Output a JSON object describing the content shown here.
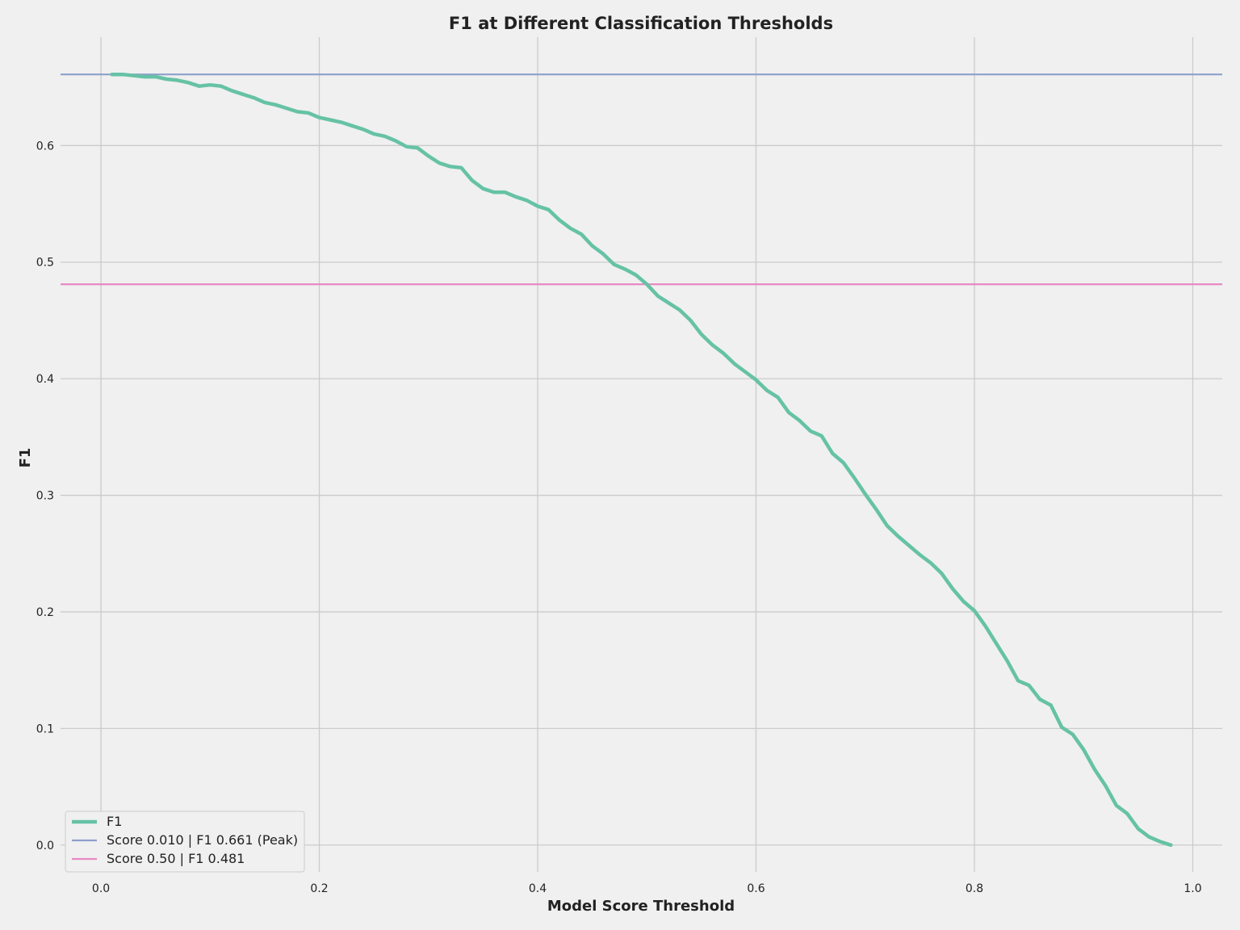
{
  "chart_data": {
    "type": "line",
    "title": "F1 at Different Classification Thresholds",
    "xlabel": "Model Score Threshold",
    "ylabel": "F1",
    "xlim": [
      -0.037,
      1.027
    ],
    "ylim": [
      -0.023,
      0.693
    ],
    "grid": true,
    "legend_position": "bottom-left",
    "x_ticks": [
      0.0,
      0.2,
      0.4,
      0.6,
      0.8,
      1.0
    ],
    "x_tick_labels": [
      "0.0",
      "0.2",
      "0.4",
      "0.6",
      "0.8",
      "1.0"
    ],
    "y_ticks": [
      0.0,
      0.1,
      0.2,
      0.3,
      0.4,
      0.5,
      0.6
    ],
    "y_tick_labels": [
      "0.0",
      "0.1",
      "0.2",
      "0.3",
      "0.4",
      "0.5",
      "0.6"
    ],
    "series": [
      {
        "name": "F1",
        "color": "#66c2a5",
        "x": [
          0.01,
          0.02,
          0.03,
          0.04,
          0.05,
          0.06,
          0.07,
          0.08,
          0.09,
          0.1,
          0.11,
          0.12,
          0.13,
          0.14,
          0.15,
          0.16,
          0.17,
          0.18,
          0.19,
          0.2,
          0.21,
          0.22,
          0.23,
          0.24,
          0.25,
          0.26,
          0.27,
          0.28,
          0.29,
          0.3,
          0.31,
          0.32,
          0.33,
          0.34,
          0.35,
          0.36,
          0.37,
          0.38,
          0.39,
          0.4,
          0.41,
          0.42,
          0.43,
          0.44,
          0.45,
          0.46,
          0.47,
          0.48,
          0.49,
          0.5,
          0.51,
          0.52,
          0.53,
          0.54,
          0.55,
          0.56,
          0.57,
          0.58,
          0.59,
          0.6,
          0.61,
          0.62,
          0.63,
          0.64,
          0.65,
          0.66,
          0.67,
          0.68,
          0.69,
          0.7,
          0.71,
          0.72,
          0.73,
          0.74,
          0.75,
          0.76,
          0.77,
          0.78,
          0.79,
          0.8,
          0.81,
          0.82,
          0.83,
          0.84,
          0.85,
          0.86,
          0.87,
          0.88,
          0.89,
          0.9,
          0.91,
          0.92,
          0.93,
          0.94,
          0.95,
          0.96,
          0.97,
          0.98
        ],
        "y": [
          0.661,
          0.661,
          0.66,
          0.659,
          0.659,
          0.657,
          0.656,
          0.654,
          0.651,
          0.652,
          0.651,
          0.647,
          0.644,
          0.641,
          0.637,
          0.635,
          0.632,
          0.629,
          0.628,
          0.624,
          0.622,
          0.62,
          0.617,
          0.614,
          0.61,
          0.608,
          0.604,
          0.599,
          0.598,
          0.591,
          0.585,
          0.582,
          0.581,
          0.57,
          0.563,
          0.56,
          0.56,
          0.556,
          0.553,
          0.548,
          0.545,
          0.536,
          0.529,
          0.524,
          0.514,
          0.507,
          0.498,
          0.494,
          0.489,
          0.481,
          0.471,
          0.465,
          0.459,
          0.45,
          0.438,
          0.429,
          0.422,
          0.413,
          0.406,
          0.399,
          0.39,
          0.384,
          0.371,
          0.364,
          0.355,
          0.351,
          0.336,
          0.328,
          0.315,
          0.301,
          0.288,
          0.274,
          0.265,
          0.257,
          0.249,
          0.242,
          0.233,
          0.22,
          0.209,
          0.201,
          0.188,
          0.173,
          0.158,
          0.141,
          0.137,
          0.125,
          0.12,
          0.101,
          0.095,
          0.082,
          0.065,
          0.051,
          0.034,
          0.027,
          0.014,
          0.007,
          0.003,
          0.0
        ]
      }
    ],
    "reference_lines": [
      {
        "name": "Score 0.010 | F1 0.661 (Peak)",
        "y": 0.661,
        "color": "#8da0cb"
      },
      {
        "name": "Score 0.50 | F1 0.481",
        "y": 0.481,
        "color": "#e78ac3"
      }
    ]
  }
}
